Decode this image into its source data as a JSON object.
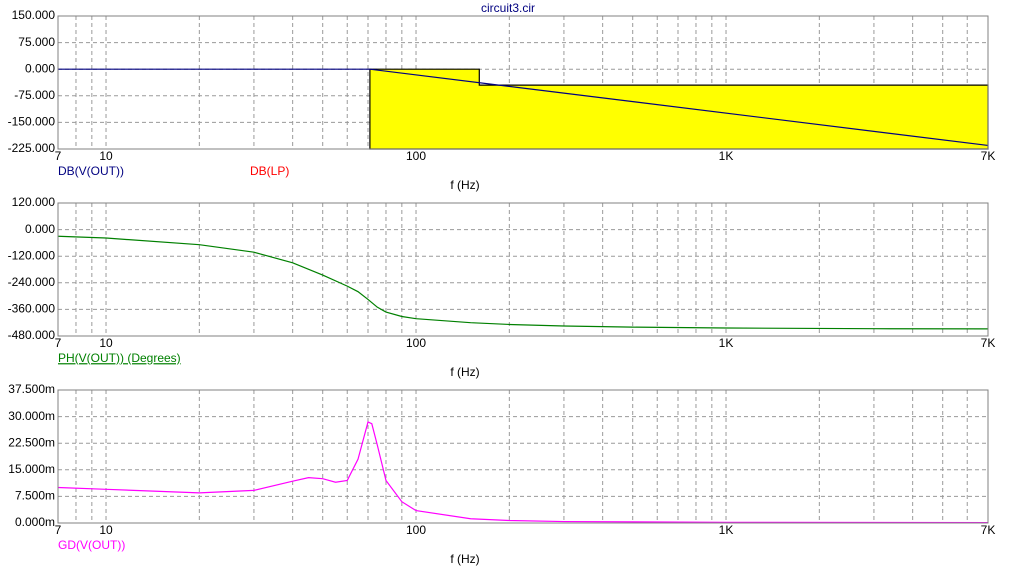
{
  "title": "circuit3.cir",
  "chart_data": [
    {
      "type": "line",
      "xscale": "log",
      "xlabel": "f (Hz)",
      "grid": true,
      "xlim": [
        7,
        7000
      ],
      "xticks": [
        7,
        10,
        100,
        {
          "value": 1000,
          "label": "1K"
        },
        {
          "value": 7000,
          "label": "7K"
        }
      ],
      "xminor": [
        8,
        9,
        20,
        30,
        40,
        50,
        60,
        70,
        80,
        90,
        200,
        300,
        400,
        500,
        600,
        700,
        800,
        900,
        2000,
        3000,
        4000,
        5000,
        6000
      ],
      "ylim": [
        -225,
        150
      ],
      "yticks": [
        {
          "value": 150,
          "label": "150.000"
        },
        {
          "value": 75,
          "label": "75.000"
        },
        {
          "value": 0,
          "label": "0.000"
        },
        {
          "value": -75,
          "label": "-75.000"
        },
        {
          "value": -150,
          "label": "-150.000"
        },
        {
          "value": -225,
          "label": "-225.000"
        }
      ],
      "series": [
        {
          "name": "DB(V(OUT))",
          "color": "#000080",
          "x": [
            7,
            71,
            7000
          ],
          "values": [
            0,
            0,
            -215
          ]
        },
        {
          "name": "DB(LP)",
          "color": "#ff0000",
          "fill": "#ffff00",
          "edge_color": "#000000",
          "x": [
            71,
            160,
            160,
            7000
          ],
          "values": [
            0,
            0,
            -45,
            -45
          ]
        }
      ]
    },
    {
      "type": "line",
      "xscale": "log",
      "xlabel": "f (Hz)",
      "grid": true,
      "xlim": [
        7,
        7000
      ],
      "xticks": [
        7,
        10,
        100,
        {
          "value": 1000,
          "label": "1K"
        },
        {
          "value": 7000,
          "label": "7K"
        }
      ],
      "xminor": [
        8,
        9,
        20,
        30,
        40,
        50,
        60,
        70,
        80,
        90,
        200,
        300,
        400,
        500,
        600,
        700,
        800,
        900,
        2000,
        3000,
        4000,
        5000,
        6000
      ],
      "ylim": [
        -480,
        120
      ],
      "yticks": [
        {
          "value": 120,
          "label": "120.000"
        },
        {
          "value": 0,
          "label": "0.000"
        },
        {
          "value": -120,
          "label": "-120.000"
        },
        {
          "value": -240,
          "label": "-240.000"
        },
        {
          "value": -360,
          "label": "-360.000"
        },
        {
          "value": -480,
          "label": "-480.000"
        }
      ],
      "series": [
        {
          "name": "PH(V(OUT)) (Degrees)",
          "color": "#008000",
          "underline": true,
          "x": [
            7,
            10,
            20,
            30,
            40,
            50,
            60,
            65,
            70,
            75,
            80,
            90,
            100,
            150,
            200,
            300,
            500,
            1000,
            3000,
            7000
          ],
          "values": [
            -30,
            -38,
            -68,
            -102,
            -150,
            -205,
            -255,
            -280,
            -315,
            -350,
            -372,
            -392,
            -402,
            -420,
            -428,
            -435,
            -440,
            -444,
            -447,
            -448
          ]
        }
      ]
    },
    {
      "type": "line",
      "xscale": "log",
      "xlabel": "f (Hz)",
      "grid": true,
      "xlim": [
        7,
        7000
      ],
      "xticks": [
        7,
        10,
        100,
        {
          "value": 1000,
          "label": "1K"
        },
        {
          "value": 7000,
          "label": "7K"
        }
      ],
      "xminor": [
        8,
        9,
        20,
        30,
        40,
        50,
        60,
        70,
        80,
        90,
        200,
        300,
        400,
        500,
        600,
        700,
        800,
        900,
        2000,
        3000,
        4000,
        5000,
        6000
      ],
      "ylim": [
        0,
        0.0375
      ],
      "yticks": [
        {
          "value": 0.0375,
          "label": "37.500m"
        },
        {
          "value": 0.03,
          "label": "30.000m"
        },
        {
          "value": 0.0225,
          "label": "22.500m"
        },
        {
          "value": 0.015,
          "label": "15.000m"
        },
        {
          "value": 0.0075,
          "label": "7.500m"
        },
        {
          "value": 0,
          "label": "0.000m"
        }
      ],
      "series": [
        {
          "name": "GD(V(OUT))",
          "color": "#ff00ff",
          "x": [
            7,
            10,
            20,
            30,
            40,
            45,
            50,
            55,
            60,
            65,
            70,
            72,
            75,
            80,
            90,
            100,
            150,
            200,
            300,
            1000,
            7000
          ],
          "values": [
            0.01,
            0.0095,
            0.0085,
            0.0092,
            0.0118,
            0.0128,
            0.0125,
            0.0115,
            0.012,
            0.018,
            0.0285,
            0.028,
            0.022,
            0.012,
            0.006,
            0.0035,
            0.0012,
            0.0007,
            0.0004,
            0.0002,
            0.0001
          ]
        }
      ]
    }
  ]
}
